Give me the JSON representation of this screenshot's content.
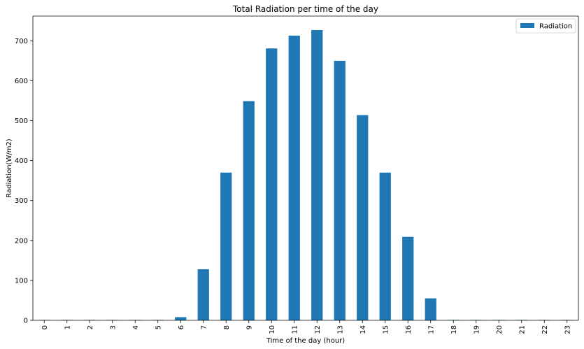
{
  "chart_data": {
    "type": "bar",
    "title": "Total Radiation per time of the day",
    "xlabel": "Time of the day (hour)",
    "ylabel": "Radiation(W/m2)",
    "categories": [
      "0",
      "1",
      "2",
      "3",
      "4",
      "5",
      "6",
      "7",
      "8",
      "9",
      "10",
      "11",
      "12",
      "13",
      "14",
      "15",
      "16",
      "17",
      "18",
      "19",
      "20",
      "21",
      "22",
      "23"
    ],
    "series": [
      {
        "name": "Radiation",
        "color": "#1f77b4",
        "values": [
          1,
          1,
          1,
          1,
          1,
          1,
          8,
          128,
          370,
          549,
          681,
          713,
          727,
          650,
          514,
          370,
          209,
          55,
          1,
          1,
          1,
          1,
          1,
          1
        ]
      }
    ],
    "ylim": [
      0,
      762
    ],
    "yticks": [
      0,
      100,
      200,
      300,
      400,
      500,
      600,
      700
    ],
    "grid": false,
    "legend_position": "top-right"
  }
}
